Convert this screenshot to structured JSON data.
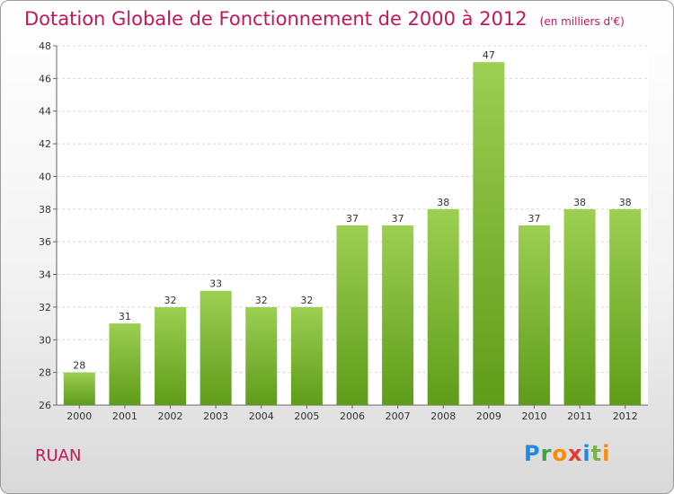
{
  "title": "Dotation Globale de Fonctionnement de 2000 à 2012",
  "subtitle": "(en milliers d'€)",
  "commune": "RUAN",
  "logo": "Proxiti",
  "colors": {
    "title": "#c2185b",
    "bar_top": "#9ccf52",
    "bar_bottom": "#5f9c1a",
    "grid": "#d8d8d8"
  },
  "chart_data": {
    "type": "bar",
    "title": "Dotation Globale de Fonctionnement de 2000 à 2012",
    "subtitle": "(en milliers d'€)",
    "categories": [
      "2000",
      "2001",
      "2002",
      "2003",
      "2004",
      "2005",
      "2006",
      "2007",
      "2008",
      "2009",
      "2010",
      "2011",
      "2012"
    ],
    "values": [
      28,
      31,
      32,
      33,
      32,
      32,
      37,
      37,
      38,
      47,
      37,
      38,
      38
    ],
    "ylim": [
      26,
      48
    ],
    "yticks": [
      26,
      28,
      30,
      32,
      34,
      36,
      38,
      40,
      42,
      44,
      46,
      48
    ],
    "grid": true,
    "data_labels": true
  }
}
